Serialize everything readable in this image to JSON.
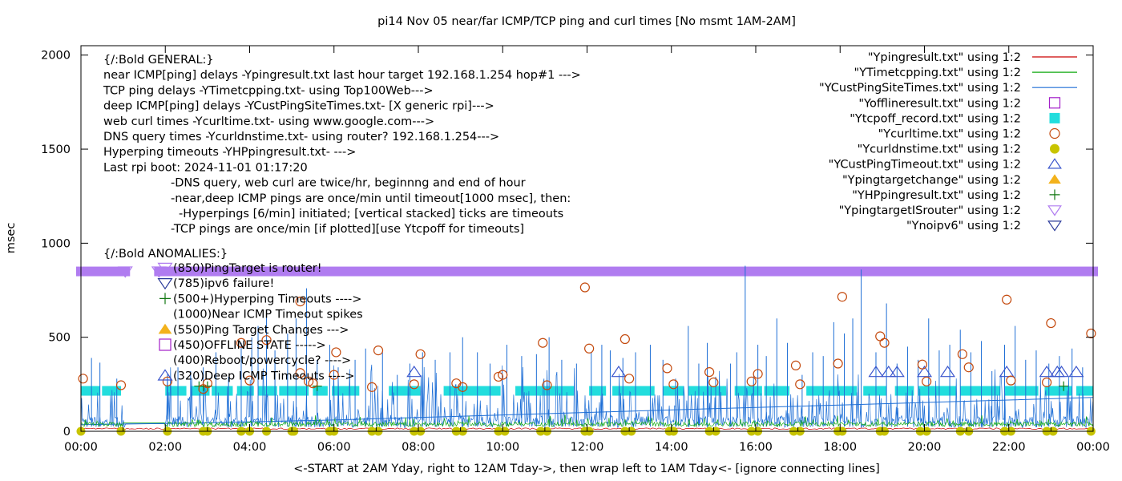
{
  "chart_data": {
    "type": "line",
    "title": "pi14 Nov 05  near/far ICMP/TCP ping and curl times [No msmt 1AM-2AM]",
    "xlabel": "<-START at 2AM Yday, right to 12AM Tday->, then wrap left to 1AM Tday<- [ignore connecting lines]",
    "ylabel": "msec",
    "xlim": [
      0,
      24
    ],
    "ylim": [
      0,
      2050
    ],
    "x_ticks": [
      "00:00",
      "02:00",
      "04:00",
      "06:00",
      "08:00",
      "10:00",
      "12:00",
      "14:00",
      "16:00",
      "18:00",
      "20:00",
      "22:00",
      "00:00"
    ],
    "y_ticks": [
      0,
      500,
      1000,
      1500,
      2000
    ],
    "grid": false,
    "legend_position": "top-right",
    "colors": {
      "ping": "#cc0000",
      "tcp": "#11aa11",
      "cust": "#1f6fd6",
      "offline": "#a31fc9",
      "tcpoff": "#22dddd",
      "curl": "#c44a0e",
      "dns": "#c8c400",
      "custtimeout": "#3a55cc",
      "targetchange": "#f3b21c",
      "hpping": "#117711",
      "router": "#b07cf0",
      "noipv6": "#2a3a9a"
    },
    "legend": [
      {
        "label": "\"Ypingresult.txt\" using 1:2",
        "style": "line",
        "color": "ping"
      },
      {
        "label": "\"YTimetcpping.txt\" using 1:2",
        "style": "line",
        "color": "tcp"
      },
      {
        "label": "\"YCustPingSiteTimes.txt\" using 1:2",
        "style": "line",
        "color": "cust"
      },
      {
        "label": "\"Yofflineresult.txt\" using 1:2",
        "style": "square-open",
        "color": "offline"
      },
      {
        "label": "\"Ytcpoff_record.txt\" using 1:2",
        "style": "square-filled",
        "color": "tcpoff"
      },
      {
        "label": "\"Ycurltime.txt\" using 1:2",
        "style": "circle-open",
        "color": "curl"
      },
      {
        "label": "\"Ycurldnstime.txt\" using 1:2",
        "style": "circle-filled",
        "color": "dns"
      },
      {
        "label": "\"YCustPingTimeout.txt\" using 1:2",
        "style": "triangle-open",
        "color": "custtimeout"
      },
      {
        "label": "\"Ypingtargetchange\" using 1:2",
        "style": "triangle-filled",
        "color": "targetchange"
      },
      {
        "label": "\"YHPpingresult.txt\" using 1:2",
        "style": "plus",
        "color": "hpping"
      },
      {
        "label": "\"YpingtargetISrouter\" using 1:2",
        "style": "triangle-down-open",
        "color": "router"
      },
      {
        "label": "\"Ynoipv6\" using 1:2",
        "style": "triangle-down-open",
        "color": "noipv6"
      }
    ],
    "notes": [
      "{/:Bold GENERAL:}",
      "near ICMP[ping] delays -Ypingresult.txt last hour target 192.168.1.254 hop#1 --->",
      "TCP ping delays -YTimetcpping.txt- using Top100Web--->",
      "deep ICMP[ping] delays -YCustPingSiteTimes.txt- [X generic rpi]--->",
      "web curl times -Ycurltime.txt- using www.google.com--->",
      "DNS query times -Ycurldnstime.txt- using router? 192.168.1.254--->",
      "Hyperping timeouts -YHPpingresult.txt- --->",
      "Last rpi boot: 2024-11-01 01:17:20",
      "-DNS query, web curl are twice/hr, beginnng and end of hour",
      "-near,deep ICMP pings are once/min until timeout[1000 msec], then:",
      "-Hyperpings [6/min] initiated; [vertical stacked] ticks are timeouts",
      "-TCP pings are once/min [if plotted][use Ytcpoff for timeouts]",
      "{/:Bold ANOMALIES:}"
    ],
    "anomalies": [
      {
        "label": "(850)PingTarget is router!",
        "marker": "triangle-down-open",
        "color": "router"
      },
      {
        "label": "(785)ipv6 failure!",
        "marker": "triangle-down-open",
        "color": "noipv6"
      },
      {
        "label": "(500+)Hyperping Timeouts ---->",
        "marker": "plus",
        "color": "hpping"
      },
      {
        "label": "(1000)Near ICMP Timeout spikes",
        "marker": "none",
        "color": "ping"
      },
      {
        "label": "(550)Ping Target Changes --->",
        "marker": "triangle-filled",
        "color": "targetchange"
      },
      {
        "label": "(450)OFFLINE STATE ----->",
        "marker": "square-open",
        "color": "offline"
      },
      {
        "label": "(400)Reboot/powercycle? ---->",
        "marker": "none",
        "color": "offline"
      },
      {
        "label": "(320)Deep ICMP Timeouts ---->",
        "marker": "triangle-open",
        "color": "custtimeout"
      }
    ],
    "router_line": {
      "y": 850,
      "gaps": [
        [
          1.05,
          1.85
        ]
      ]
    },
    "tcpoff": {
      "y": 215,
      "segments": [
        [
          0,
          0.45
        ],
        [
          0.5,
          0.95
        ],
        [
          2,
          2.5
        ],
        [
          2.6,
          3.05
        ],
        [
          3.1,
          3.6
        ],
        [
          3.7,
          4.1
        ],
        [
          4.2,
          4.65
        ],
        [
          4.7,
          5.4
        ],
        [
          5.5,
          5.85
        ],
        [
          5.95,
          6.6
        ],
        [
          7.3,
          8.05
        ],
        [
          8.6,
          9.95
        ],
        [
          10.3,
          11.7
        ],
        [
          12.05,
          12.45
        ],
        [
          12.6,
          13.6
        ],
        [
          13.8,
          14.3
        ],
        [
          14.4,
          15.3
        ],
        [
          15.5,
          16.15
        ],
        [
          16.2,
          16.8
        ],
        [
          17.2,
          18.4
        ],
        [
          18.55,
          19.1
        ],
        [
          19.3,
          19.75
        ],
        [
          19.85,
          20.75
        ],
        [
          20.85,
          21.8
        ],
        [
          21.9,
          22.7
        ],
        [
          22.85,
          23.5
        ],
        [
          23.6,
          24
        ]
      ]
    },
    "curl": [
      [
        0.05,
        280
      ],
      [
        0.95,
        245
      ],
      [
        2.05,
        265
      ],
      [
        2.9,
        225
      ],
      [
        3.0,
        255
      ],
      [
        3.8,
        470
      ],
      [
        4.0,
        270
      ],
      [
        4.4,
        485
      ],
      [
        5.2,
        690
      ],
      [
        5.2,
        310
      ],
      [
        5.4,
        265
      ],
      [
        5.5,
        255
      ],
      [
        6.0,
        300
      ],
      [
        6.05,
        420
      ],
      [
        6.9,
        235
      ],
      [
        7.05,
        430
      ],
      [
        7.9,
        250
      ],
      [
        8.05,
        410
      ],
      [
        8.9,
        255
      ],
      [
        9.05,
        235
      ],
      [
        9.9,
        290
      ],
      [
        10.0,
        300
      ],
      [
        10.95,
        470
      ],
      [
        11.05,
        245
      ],
      [
        11.95,
        765
      ],
      [
        12.05,
        440
      ],
      [
        12.9,
        490
      ],
      [
        13.0,
        280
      ],
      [
        13.9,
        335
      ],
      [
        14.05,
        250
      ],
      [
        14.9,
        315
      ],
      [
        15.0,
        260
      ],
      [
        15.9,
        265
      ],
      [
        16.05,
        305
      ],
      [
        16.95,
        350
      ],
      [
        17.05,
        250
      ],
      [
        17.95,
        360
      ],
      [
        18.05,
        715
      ],
      [
        18.95,
        505
      ],
      [
        19.05,
        470
      ],
      [
        19.95,
        355
      ],
      [
        20.05,
        265
      ],
      [
        20.9,
        410
      ],
      [
        21.05,
        340
      ],
      [
        21.95,
        700
      ],
      [
        22.05,
        270
      ],
      [
        22.9,
        260
      ],
      [
        23.0,
        575
      ],
      [
        23.95,
        520
      ]
    ],
    "dns": [
      0,
      0.95,
      2.05,
      2.9,
      3.0,
      3.8,
      4.0,
      4.4,
      5.0,
      5.05,
      5.9,
      6.0,
      6.9,
      7.05,
      7.9,
      8.05,
      8.9,
      9.05,
      9.9,
      10.05,
      10.9,
      11.05,
      11.95,
      12.05,
      12.9,
      13.05,
      13.95,
      14.05,
      14.9,
      15.05,
      15.9,
      16.05,
      16.9,
      17.05,
      17.95,
      18.05,
      18.95,
      19.05,
      19.9,
      20.05,
      20.85,
      21.05,
      21.9,
      22.05,
      22.9,
      23.05,
      23.95
    ],
    "custtimeout": [
      [
        7.9,
        315
      ],
      [
        12.75,
        315
      ],
      [
        18.85,
        315
      ],
      [
        19.15,
        315
      ],
      [
        19.35,
        315
      ],
      [
        20.0,
        315
      ],
      [
        20.55,
        315
      ],
      [
        21.95,
        315
      ],
      [
        22.9,
        315
      ],
      [
        23.15,
        315
      ],
      [
        23.25,
        315
      ],
      [
        23.6,
        315
      ]
    ],
    "hpping": [
      [
        2.8,
        240
      ],
      [
        2.9,
        240
      ],
      [
        3.0,
        240
      ],
      [
        5.6,
        240
      ],
      [
        23.3,
        240
      ]
    ],
    "series_cust_baseline": [
      [
        0,
        35
      ],
      [
        3,
        45
      ],
      [
        6,
        60
      ],
      [
        9,
        80
      ],
      [
        12,
        100
      ],
      [
        15,
        120
      ],
      [
        18,
        140
      ],
      [
        21,
        160
      ],
      [
        24,
        180
      ]
    ],
    "series_ping_baseline": 30,
    "series_tcp_baseline": 45,
    "series_cust_spikes": [
      [
        0.25,
        390
      ],
      [
        0.45,
        365
      ],
      [
        0.85,
        280
      ],
      [
        2.05,
        300
      ],
      [
        2.3,
        340
      ],
      [
        2.6,
        320
      ],
      [
        2.9,
        340
      ],
      [
        3.2,
        420
      ],
      [
        3.5,
        290
      ],
      [
        3.8,
        470
      ],
      [
        4.05,
        500
      ],
      [
        4.2,
        560
      ],
      [
        4.4,
        640
      ],
      [
        4.6,
        430
      ],
      [
        4.9,
        520
      ],
      [
        5.1,
        600
      ],
      [
        5.35,
        760
      ],
      [
        5.6,
        380
      ],
      [
        5.9,
        460
      ],
      [
        6.1,
        340
      ],
      [
        6.5,
        380
      ],
      [
        6.75,
        440
      ],
      [
        7.15,
        420
      ],
      [
        7.5,
        300
      ],
      [
        7.8,
        360
      ],
      [
        8.1,
        420
      ],
      [
        8.4,
        380
      ],
      [
        8.75,
        420
      ],
      [
        9.05,
        500
      ],
      [
        9.4,
        420
      ],
      [
        9.7,
        360
      ],
      [
        10.1,
        460
      ],
      [
        10.45,
        400
      ],
      [
        10.8,
        410
      ],
      [
        11.1,
        500
      ],
      [
        11.4,
        380
      ],
      [
        11.75,
        360
      ],
      [
        12.1,
        420
      ],
      [
        12.35,
        460
      ],
      [
        12.55,
        430
      ],
      [
        12.85,
        390
      ],
      [
        13.15,
        420
      ],
      [
        13.5,
        460
      ],
      [
        13.8,
        380
      ],
      [
        14.1,
        280
      ],
      [
        14.4,
        560
      ],
      [
        14.65,
        360
      ],
      [
        14.85,
        470
      ],
      [
        15.05,
        290
      ],
      [
        15.4,
        360
      ],
      [
        15.55,
        420
      ],
      [
        15.75,
        880
      ],
      [
        16.05,
        460
      ],
      [
        16.25,
        400
      ],
      [
        16.5,
        600
      ],
      [
        16.75,
        470
      ],
      [
        17.1,
        300
      ],
      [
        17.35,
        420
      ],
      [
        17.6,
        400
      ],
      [
        17.85,
        580
      ],
      [
        18.1,
        520
      ],
      [
        18.3,
        600
      ],
      [
        18.5,
        860
      ],
      [
        18.85,
        420
      ],
      [
        19.1,
        680
      ],
      [
        19.35,
        360
      ],
      [
        19.6,
        450
      ],
      [
        19.85,
        380
      ],
      [
        20.1,
        600
      ],
      [
        20.35,
        430
      ],
      [
        20.6,
        460
      ],
      [
        20.85,
        540
      ],
      [
        21.1,
        420
      ],
      [
        21.35,
        480
      ],
      [
        21.6,
        320
      ],
      [
        21.9,
        460
      ],
      [
        22.15,
        560
      ],
      [
        22.4,
        380
      ],
      [
        22.65,
        430
      ],
      [
        22.95,
        360
      ],
      [
        23.2,
        400
      ],
      [
        23.5,
        440
      ],
      [
        23.75,
        340
      ]
    ]
  }
}
